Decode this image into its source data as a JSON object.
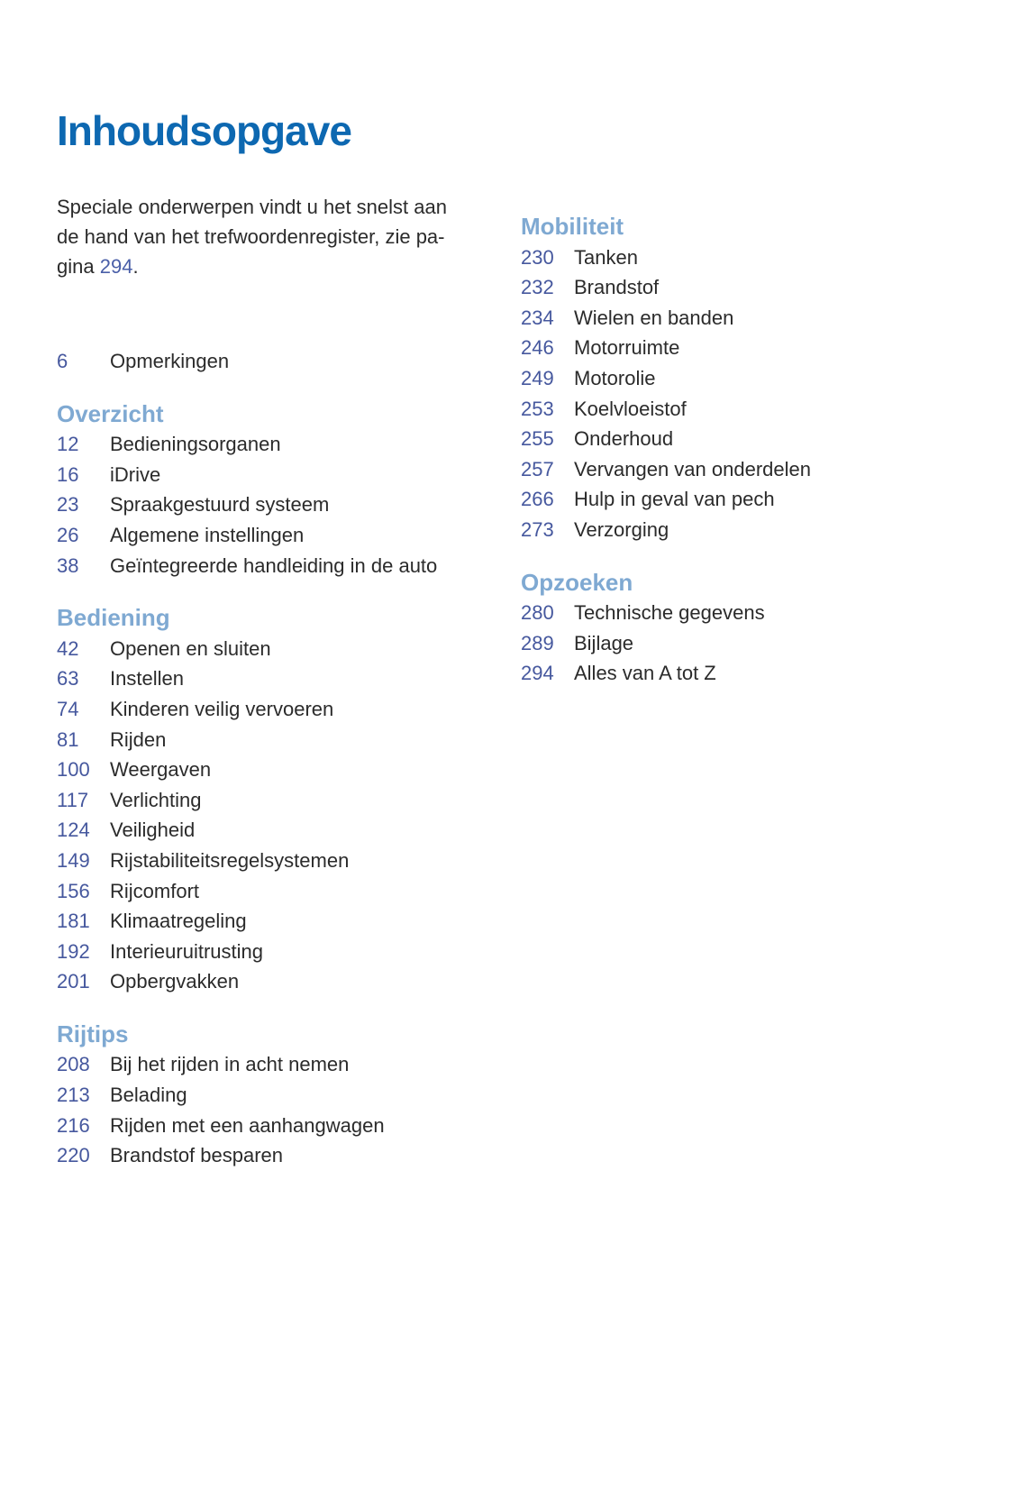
{
  "page": {
    "title": "Inhoudsopgave",
    "intro": {
      "lines": [
        "Speciale onderwerpen vindt u het snelst aan",
        "de hand van het trefwoordenregister, zie pa-"
      ],
      "line3_prefix": "gina ",
      "page_link": "294",
      "line3_suffix": "."
    },
    "columns": [
      {
        "blocks": [
          {
            "num": "6",
            "label": "Opmerkingen"
          },
          {
            "heading": "Overzicht"
          },
          {
            "num": "12",
            "label": "Bedieningsorganen"
          },
          {
            "num": "16",
            "label": "iDrive"
          },
          {
            "num": "23",
            "label": "Spraakgestuurd systeem"
          },
          {
            "num": "26",
            "label": "Algemene instellingen"
          },
          {
            "num": "38",
            "label": "Geïntegreerde handleiding in de auto"
          },
          {
            "heading": "Bediening"
          },
          {
            "num": "42",
            "label": "Openen en sluiten"
          },
          {
            "num": "63",
            "label": "Instellen"
          },
          {
            "num": "74",
            "label": "Kinderen veilig vervoeren"
          },
          {
            "num": "81",
            "label": "Rijden"
          },
          {
            "num": "100",
            "label": "Weergaven"
          },
          {
            "num": "117",
            "label": "Verlichting"
          },
          {
            "num": "124",
            "label": "Veiligheid"
          },
          {
            "num": "149",
            "label": "Rijstabiliteitsregelsystemen"
          },
          {
            "num": "156",
            "label": "Rijcomfort"
          },
          {
            "num": "181",
            "label": "Klimaatregeling"
          },
          {
            "num": "192",
            "label": "Interieuruitrusting"
          },
          {
            "num": "201",
            "label": "Opbergvakken"
          },
          {
            "heading": "Rijtips"
          },
          {
            "num": "208",
            "label": "Bij het rijden in acht nemen"
          },
          {
            "num": "213",
            "label": "Belading"
          },
          {
            "num": "216",
            "label": "Rijden met een aanhangwagen"
          },
          {
            "num": "220",
            "label": "Brandstof besparen"
          }
        ]
      },
      {
        "blocks": [
          {
            "heading": "Mobiliteit"
          },
          {
            "num": "230",
            "label": "Tanken"
          },
          {
            "num": "232",
            "label": "Brandstof"
          },
          {
            "num": "234",
            "label": "Wielen en banden"
          },
          {
            "num": "246",
            "label": "Motorruimte"
          },
          {
            "num": "249",
            "label": "Motorolie"
          },
          {
            "num": "253",
            "label": "Koelvloeistof"
          },
          {
            "num": "255",
            "label": "Onderhoud"
          },
          {
            "num": "257",
            "label": "Vervangen van onderdelen"
          },
          {
            "num": "266",
            "label": "Hulp in geval van pech"
          },
          {
            "num": "273",
            "label": "Verzorging"
          },
          {
            "heading": "Opzoeken"
          },
          {
            "num": "280",
            "label": "Technische gegevens"
          },
          {
            "num": "289",
            "label": "Bijlage"
          },
          {
            "num": "294",
            "label": "Alles van A tot Z"
          }
        ]
      }
    ],
    "colors": {
      "title_blue": "#0d68b1",
      "heading_blue": "#7fa9d2",
      "number_blue": "#46589e",
      "link_blue": "#4a5fa8",
      "text_dark": "#2b2b2b",
      "background": "#ffffff"
    }
  }
}
